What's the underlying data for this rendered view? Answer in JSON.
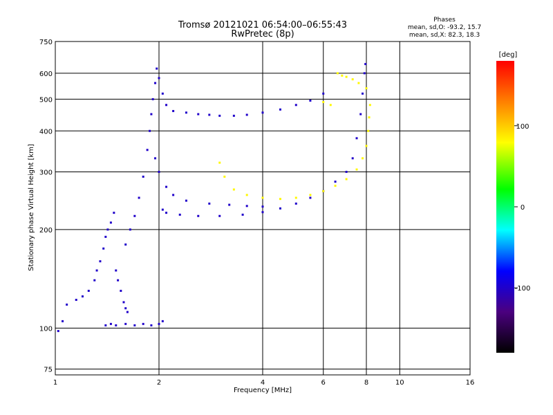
{
  "chart_data": {
    "type": "scatter",
    "title": "Tromsø 20121021 06:54:00–06:55:43",
    "subtitle": "RwPretec (8p)",
    "xlabel": "Frequency [MHz]",
    "ylabel": "Stationary phase Virtual Height [km]",
    "x_scale": "log",
    "y_scale": "log",
    "xlim": [
      1,
      16
    ],
    "ylim": [
      72,
      750
    ],
    "x_ticks": [
      1,
      2,
      4,
      6,
      8,
      10,
      16
    ],
    "y_ticks": [
      75,
      100,
      200,
      300,
      400,
      500,
      600,
      750
    ],
    "grid": true,
    "phase_stats": {
      "heading": "Phases",
      "line1": "mean, sd,O: -93.2, 15.7",
      "line2": "mean, sd,X:  82.3, 18.3"
    },
    "colorbar": {
      "label": "[deg]",
      "range": [
        -180,
        180
      ],
      "ticks": [
        100,
        0,
        -100
      ],
      "colormap": "rainbow"
    },
    "series": [
      {
        "points": [
          [
            1.02,
            98
          ],
          [
            1.05,
            105
          ],
          [
            1.08,
            118
          ],
          [
            1.15,
            122
          ],
          [
            1.2,
            125
          ],
          [
            1.25,
            130
          ],
          [
            1.3,
            140
          ],
          [
            1.32,
            150
          ],
          [
            1.35,
            160
          ],
          [
            1.38,
            175
          ],
          [
            1.4,
            190
          ],
          [
            1.42,
            200
          ],
          [
            1.45,
            210
          ],
          [
            1.48,
            225
          ],
          [
            1.5,
            150
          ],
          [
            1.52,
            140
          ],
          [
            1.55,
            130
          ],
          [
            1.58,
            120
          ],
          [
            1.6,
            115
          ],
          [
            1.62,
            112
          ],
          [
            1.4,
            102
          ],
          [
            1.45,
            103
          ],
          [
            1.5,
            102
          ],
          [
            1.6,
            103
          ],
          [
            1.7,
            102
          ],
          [
            1.8,
            103
          ],
          [
            1.9,
            102
          ],
          [
            2.0,
            103
          ],
          [
            2.05,
            105
          ],
          [
            1.6,
            180
          ],
          [
            1.65,
            200
          ],
          [
            1.7,
            220
          ],
          [
            1.75,
            250
          ],
          [
            1.8,
            290
          ],
          [
            1.85,
            350
          ],
          [
            1.88,
            400
          ],
          [
            1.9,
            450
          ],
          [
            1.92,
            500
          ],
          [
            1.95,
            560
          ],
          [
            1.97,
            620
          ],
          [
            2.0,
            580
          ],
          [
            2.05,
            520
          ],
          [
            2.1,
            480
          ],
          [
            2.2,
            460
          ],
          [
            2.4,
            455
          ],
          [
            2.6,
            450
          ],
          [
            2.8,
            448
          ],
          [
            3.0,
            445
          ],
          [
            3.3,
            445
          ],
          [
            3.6,
            448
          ],
          [
            4.0,
            455
          ],
          [
            4.5,
            465
          ],
          [
            5.0,
            480
          ],
          [
            5.5,
            495
          ],
          [
            6.0,
            520
          ],
          [
            2.05,
            230
          ],
          [
            2.1,
            225
          ],
          [
            2.3,
            222
          ],
          [
            2.6,
            220
          ],
          [
            3.0,
            220
          ],
          [
            3.5,
            222
          ],
          [
            4.0,
            226
          ],
          [
            4.5,
            232
          ],
          [
            5.0,
            240
          ],
          [
            5.5,
            250
          ],
          [
            6.0,
            262
          ],
          [
            6.5,
            280
          ],
          [
            7.0,
            300
          ],
          [
            7.3,
            330
          ],
          [
            7.5,
            380
          ],
          [
            7.7,
            450
          ],
          [
            7.8,
            520
          ],
          [
            7.9,
            600
          ],
          [
            7.95,
            640
          ],
          [
            1.95,
            330
          ],
          [
            2.0,
            300
          ],
          [
            2.1,
            270
          ],
          [
            2.2,
            255
          ],
          [
            2.4,
            245
          ],
          [
            2.8,
            240
          ],
          [
            3.2,
            238
          ],
          [
            3.6,
            236
          ],
          [
            4.0,
            235
          ]
        ],
        "phase": -100
      },
      {
        "points": [
          [
            3.0,
            320
          ],
          [
            3.1,
            290
          ],
          [
            3.3,
            265
          ],
          [
            3.6,
            255
          ],
          [
            4.0,
            250
          ],
          [
            4.5,
            248
          ],
          [
            5.0,
            250
          ],
          [
            5.5,
            255
          ],
          [
            6.0,
            262
          ],
          [
            6.5,
            272
          ],
          [
            7.0,
            285
          ],
          [
            7.5,
            305
          ],
          [
            7.8,
            330
          ],
          [
            8.0,
            360
          ],
          [
            8.1,
            400
          ],
          [
            8.15,
            440
          ],
          [
            8.2,
            480
          ],
          [
            8.0,
            540
          ],
          [
            7.6,
            560
          ],
          [
            7.3,
            575
          ],
          [
            7.0,
            585
          ],
          [
            6.8,
            590
          ],
          [
            6.6,
            600
          ],
          [
            6.3,
            480
          ],
          [
            6.0,
            490
          ]
        ],
        "phase": 82
      }
    ]
  }
}
